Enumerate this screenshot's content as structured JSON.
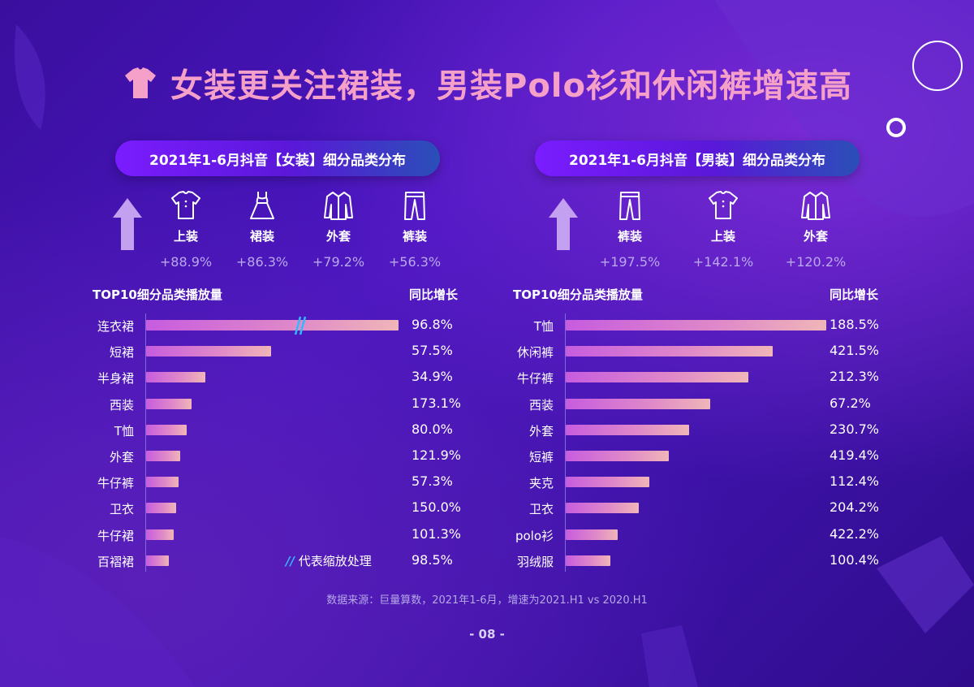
{
  "title": "女装更关注裙装，男装Polo衫和休闲裤增速高",
  "colors": {
    "title": "#f5a0c8",
    "bar_start": "#c75cdf",
    "bar_end": "#f0b6b8",
    "break_mark": "#33b7ff"
  },
  "left": {
    "pill": "2021年1-6月抖音【女装】细分品类分布",
    "categories": [
      {
        "icon": "shirt-icon",
        "label": "上装",
        "growth": "+88.9%"
      },
      {
        "icon": "dress-icon",
        "label": "裙装",
        "growth": "+86.3%"
      },
      {
        "icon": "coat-icon",
        "label": "外套",
        "growth": "+79.2%"
      },
      {
        "icon": "pants-icon",
        "label": "裤装",
        "growth": "+56.3%"
      }
    ],
    "header_left": "TOP10细分品类播放量",
    "header_right": "同比增长",
    "note": "代表缩放处理",
    "note_mark": "//"
  },
  "right": {
    "pill": "2021年1-6月抖音【男装】细分品类分布",
    "categories": [
      {
        "icon": "pants-icon",
        "label": "裤装",
        "growth": "+197.5%"
      },
      {
        "icon": "shirt-icon",
        "label": "上装",
        "growth": "+142.1%"
      },
      {
        "icon": "coat-icon",
        "label": "外套",
        "growth": "+120.2%"
      }
    ],
    "header_left": "TOP10细分品类播放量",
    "header_right": "同比增长"
  },
  "chart_data": [
    {
      "type": "bar",
      "orientation": "horizontal",
      "title": "TOP10细分品类播放量",
      "categories": [
        "连衣裙",
        "短裙",
        "半身裙",
        "西装",
        "T恤",
        "外套",
        "牛仔裤",
        "卫衣",
        "牛仔裙",
        "百褶裙"
      ],
      "values": [
        1.0,
        0.495,
        0.235,
        0.18,
        0.16,
        0.135,
        0.13,
        0.12,
        0.11,
        0.09
      ],
      "value_note": "relative play volume (top bar = 1, top bar axis-broken/scaled)",
      "growth": [
        "96.8%",
        "57.5%",
        "34.9%",
        "173.1%",
        "80.0%",
        "121.9%",
        "57.3%",
        "150.0%",
        "101.3%",
        "98.5%"
      ],
      "axis_break_on": "连衣裙"
    },
    {
      "type": "bar",
      "orientation": "horizontal",
      "title": "TOP10细分品类播放量",
      "categories": [
        "T恤",
        "休闲裤",
        "牛仔裤",
        "西装",
        "外套",
        "短裤",
        "夹克",
        "卫衣",
        "polo衫",
        "羽绒服"
      ],
      "values": [
        1.0,
        0.795,
        0.7,
        0.555,
        0.475,
        0.395,
        0.32,
        0.28,
        0.2,
        0.17
      ],
      "value_note": "relative play volume (top bar = 1)",
      "growth": [
        "188.5%",
        "421.5%",
        "212.3%",
        "67.2%",
        "230.7%",
        "419.4%",
        "112.4%",
        "204.2%",
        "422.2%",
        "100.4%"
      ]
    }
  ],
  "footer": "数据来源：巨量算数，2021年1-6月，增速为2021.H1 vs 2020.H1",
  "page": "- 08 -"
}
